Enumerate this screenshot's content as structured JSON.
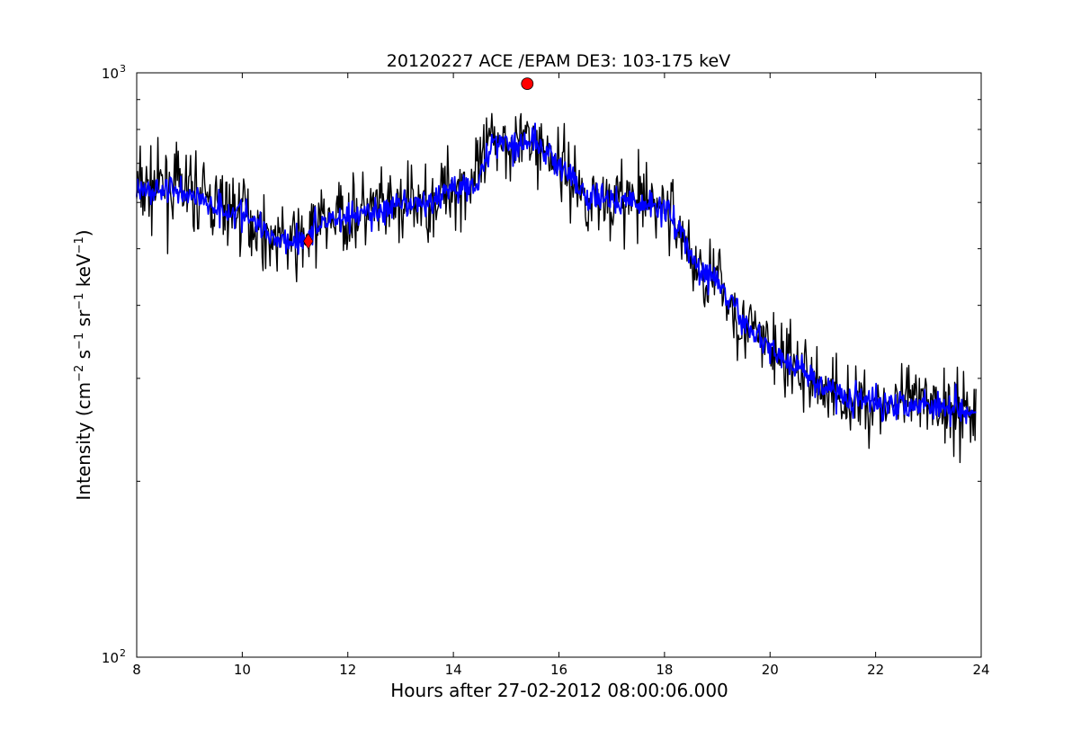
{
  "chart_data": {
    "type": "line",
    "title": "20120227 ACE /EPAM DE3: 103-175 keV",
    "xlabel": "Hours after 27-02-2012 08:00:06.000",
    "ylabel": {
      "prefix": "Intensity (cm",
      "exp1": "−2",
      "mid1": " s",
      "exp2": "−1",
      "mid2": " sr",
      "exp3": "−1",
      "mid3": " keV",
      "exp4": "−1",
      "suffix": ")"
    },
    "xlim": [
      8,
      24
    ],
    "ylim": [
      100,
      1000
    ],
    "yscale": "log",
    "x_ticks": [
      8,
      10,
      12,
      14,
      16,
      18,
      20,
      22,
      24
    ],
    "y_ticks": [
      {
        "value": 100,
        "base": "10",
        "exp": "2"
      },
      {
        "value": 1000,
        "base": "10",
        "exp": "3"
      }
    ],
    "grid": false,
    "series": [
      {
        "color": "#000000",
        "style": "raw noisy",
        "x": [
          8.0,
          8.5,
          9.0,
          9.5,
          10.0,
          10.5,
          11.0,
          11.3,
          11.5,
          12.0,
          12.5,
          13.0,
          13.5,
          14.0,
          14.4,
          14.8,
          15.2,
          15.5,
          15.8,
          16.2,
          16.5,
          17.0,
          17.5,
          18.0,
          18.3,
          18.6,
          19.0,
          19.5,
          20.0,
          20.5,
          21.0,
          21.5,
          22.0,
          22.5,
          23.0,
          23.5,
          23.9
        ],
        "y": [
          630,
          640,
          630,
          595,
          580,
          525,
          510,
          530,
          560,
          570,
          580,
          590,
          600,
          640,
          650,
          780,
          760,
          770,
          730,
          670,
          610,
          610,
          600,
          590,
          540,
          460,
          440,
          370,
          340,
          310,
          290,
          275,
          270,
          272,
          270,
          268,
          265
        ]
      },
      {
        "color": "#0000ff",
        "style": "smoothed",
        "x": [
          8.0,
          8.5,
          9.0,
          9.5,
          10.0,
          10.5,
          11.0,
          11.3,
          11.5,
          12.0,
          12.5,
          13.0,
          13.5,
          14.0,
          14.4,
          14.8,
          15.2,
          15.5,
          15.8,
          16.2,
          16.5,
          17.0,
          17.5,
          18.0,
          18.3,
          18.6,
          19.0,
          19.5,
          20.0,
          20.5,
          21.0,
          21.5,
          22.0,
          22.5,
          23.0,
          23.5,
          23.9
        ],
        "y": [
          625,
          632,
          622,
          590,
          575,
          528,
          515,
          530,
          558,
          568,
          578,
          588,
          598,
          635,
          645,
          770,
          755,
          765,
          725,
          668,
          608,
          608,
          598,
          588,
          540,
          462,
          440,
          372,
          340,
          312,
          292,
          277,
          272,
          273,
          271,
          269,
          266
        ]
      }
    ],
    "markers": [
      {
        "shape": "diamond",
        "x": 11.25,
        "y": 515,
        "color": "#ff0000"
      },
      {
        "shape": "circle",
        "x": 15.4,
        "y": 958,
        "color": "#ff0000"
      }
    ]
  }
}
